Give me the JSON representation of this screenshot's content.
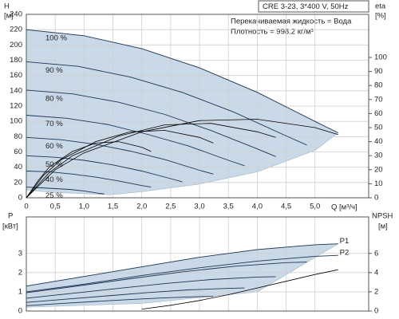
{
  "chart_data": [
    {
      "type": "line",
      "header": "CRE 3-23, 3*400 V, 50Hz",
      "notes": [
        "Перекачиваемая жидкость = Вода",
        "Плотность = 998.2 кг/м³"
      ],
      "ylabel": [
        "H",
        "[м]"
      ],
      "y2label": [
        "eta",
        "[%]"
      ],
      "xlabel": "Q [м³/ч]",
      "xlim": [
        0,
        5.93
      ],
      "ylim": [
        0,
        240
      ],
      "y2lim": [
        0,
        130.7
      ],
      "xticks": [
        0,
        {
          "value": 0.5,
          "label": "0,5"
        },
        {
          "value": 1,
          "label": "1,0"
        },
        {
          "value": 1.5,
          "label": "1,5"
        },
        {
          "value": 2,
          "label": "2,0"
        },
        {
          "value": 2.5,
          "label": "2,5"
        },
        {
          "value": 3,
          "label": "3,0"
        },
        {
          "value": 3.5,
          "label": "3,5"
        },
        {
          "value": 4,
          "label": "4,0"
        },
        {
          "value": 4.5,
          "label": "4,5"
        },
        {
          "value": 5,
          "label": "5,0"
        }
      ],
      "yticks": [
        0,
        20,
        40,
        60,
        80,
        100,
        120,
        140,
        160,
        180,
        200,
        220,
        240
      ],
      "y2ticks": [
        0,
        10,
        20,
        30,
        40,
        50,
        60,
        70,
        80,
        90,
        100
      ],
      "grid": true,
      "region": {
        "color": "#c9d9e8",
        "x": [
          0,
          1,
          2,
          3,
          4,
          5,
          5.4,
          5,
          4,
          3,
          2,
          1.45,
          0.5,
          0
        ],
        "y": [
          220,
          212,
          195,
          170,
          138,
          100,
          85,
          62,
          34,
          18,
          8,
          4,
          7,
          10
        ]
      },
      "series": [
        {
          "name": "100 %",
          "color": "#1c3553",
          "x": [
            0,
            1,
            2,
            3,
            4,
            5,
            5.4
          ],
          "values": [
            220,
            212,
            195,
            170,
            138,
            100,
            85
          ]
        },
        {
          "name": "90 %",
          "color": "#1c3553",
          "x": [
            0,
            0.9,
            1.8,
            2.7,
            3.6,
            4.5,
            4.86
          ],
          "values": [
            178,
            172,
            158,
            138,
            112,
            81,
            69
          ]
        },
        {
          "name": "80 %",
          "color": "#1c3553",
          "x": [
            0,
            0.8,
            1.6,
            2.4,
            3.2,
            4.0,
            4.32
          ],
          "values": [
            141,
            136,
            125,
            109,
            88,
            64,
            54
          ]
        },
        {
          "name": "70 %",
          "color": "#1c3553",
          "x": [
            0,
            0.7,
            1.4,
            2.1,
            2.8,
            3.5,
            3.78
          ],
          "values": [
            108,
            104,
            96,
            83,
            68,
            49,
            42
          ]
        },
        {
          "name": "60 %",
          "color": "#1c3553",
          "x": [
            0,
            0.6,
            1.2,
            1.8,
            2.4,
            3.0,
            3.24
          ],
          "values": [
            79,
            76,
            70,
            61,
            50,
            36,
            31
          ]
        },
        {
          "name": "50 %",
          "color": "#1c3553",
          "x": [
            0,
            0.5,
            1.0,
            1.5,
            2.0,
            2.5,
            2.7
          ],
          "values": [
            55,
            53,
            49,
            43,
            35,
            25,
            21
          ]
        },
        {
          "name": "40 %",
          "color": "#1c3553",
          "x": [
            0,
            0.4,
            0.8,
            1.2,
            1.6,
            2.0,
            2.16
          ],
          "values": [
            35,
            34,
            31,
            27,
            22,
            16,
            14
          ]
        },
        {
          "name": "25 %",
          "color": "#1c3553",
          "x": [
            0,
            0.25,
            0.5,
            0.75,
            1.0,
            1.25,
            1.35
          ],
          "values": [
            14,
            13,
            12,
            11,
            9,
            6,
            5
          ]
        },
        {
          "color": "#000000",
          "axis": "y2",
          "x": [
            0,
            0.5,
            1,
            2,
            3,
            4,
            5,
            5.4
          ],
          "values": [
            0,
            20,
            32,
            47,
            55,
            56,
            50,
            45
          ]
        },
        {
          "color": "#000000",
          "axis": "y2",
          "x": [
            0,
            0.4,
            0.8,
            1.6,
            2.4,
            3.2,
            4.0,
            4.32
          ],
          "values": [
            0,
            18,
            30,
            44,
            52,
            53,
            47,
            43
          ]
        },
        {
          "color": "#000000",
          "axis": "y2",
          "x": [
            0,
            0.3,
            0.6,
            1.2,
            1.8,
            2.4,
            3.0,
            3.24
          ],
          "values": [
            0,
            16,
            27,
            40,
            47,
            48,
            43,
            39
          ]
        },
        {
          "color": "#000000",
          "axis": "y2",
          "x": [
            0,
            0.2,
            0.4,
            0.8,
            1.2,
            1.6,
            2.0,
            2.16
          ],
          "values": [
            0,
            12,
            22,
            33,
            39,
            40,
            36,
            33
          ]
        }
      ]
    },
    {
      "type": "line",
      "ylabel": [
        "P",
        "[кВт]"
      ],
      "y2label": [
        "NPSH",
        "[м]"
      ],
      "xlim": [
        0,
        5.93
      ],
      "ylim": [
        0,
        4.9
      ],
      "y2lim": [
        0,
        9.8
      ],
      "xticks": [
        0,
        0.5,
        1,
        1.5,
        2,
        2.5,
        3,
        3.5,
        4,
        4.5,
        5
      ],
      "yticks": [
        0,
        1,
        2,
        3
      ],
      "y2ticks": [
        0,
        2,
        4,
        6
      ],
      "grid": true,
      "region": {
        "color": "#c9d9e8",
        "x": [
          0,
          1,
          2,
          3,
          4,
          5,
          5.4,
          4,
          2,
          0
        ],
        "y": [
          1.3,
          1.8,
          2.3,
          2.8,
          3.2,
          3.45,
          3.5,
          1.0,
          0.4,
          0.2
        ]
      },
      "series": [
        {
          "name": "P1",
          "color": "#1c3553",
          "x": [
            0,
            1,
            2,
            3,
            4,
            5,
            5.4
          ],
          "values": [
            1.3,
            1.8,
            2.3,
            2.8,
            3.2,
            3.45,
            3.5
          ]
        },
        {
          "name": "P2",
          "color": "#1c3553",
          "x": [
            0,
            1,
            2,
            3,
            4,
            5,
            5.4
          ],
          "values": [
            1.0,
            1.4,
            1.85,
            2.25,
            2.6,
            2.85,
            2.9
          ]
        },
        {
          "color": "#1c3553",
          "x": [
            0,
            0.9,
            1.8,
            2.7,
            3.6,
            4.5,
            4.86
          ],
          "values": [
            0.95,
            1.31,
            1.68,
            2.04,
            2.33,
            2.52,
            2.55
          ]
        },
        {
          "color": "#1c3553",
          "x": [
            0,
            0.8,
            1.6,
            2.4,
            3.2,
            4.0,
            4.32
          ],
          "values": [
            0.67,
            0.92,
            1.18,
            1.43,
            1.64,
            1.77,
            1.79
          ]
        },
        {
          "color": "#1c3553",
          "x": [
            0,
            0.7,
            1.4,
            2.1,
            2.8,
            3.5,
            3.78
          ],
          "values": [
            0.45,
            0.62,
            0.79,
            0.96,
            1.1,
            1.18,
            1.2
          ]
        },
        {
          "color": "#1c3553",
          "x": [
            0,
            0.6,
            1.2,
            1.8,
            2.4,
            3.0,
            3.24
          ],
          "values": [
            0.28,
            0.39,
            0.5,
            0.6,
            0.69,
            0.75,
            0.76
          ]
        },
        {
          "color": "#000000",
          "axis": "y2",
          "x": [
            2,
            2.5,
            3,
            3.5,
            4,
            4.5,
            5,
            5.4
          ],
          "values": [
            0.2,
            0.6,
            1.1,
            1.7,
            2.4,
            3.1,
            3.8,
            4.3
          ]
        }
      ]
    }
  ]
}
